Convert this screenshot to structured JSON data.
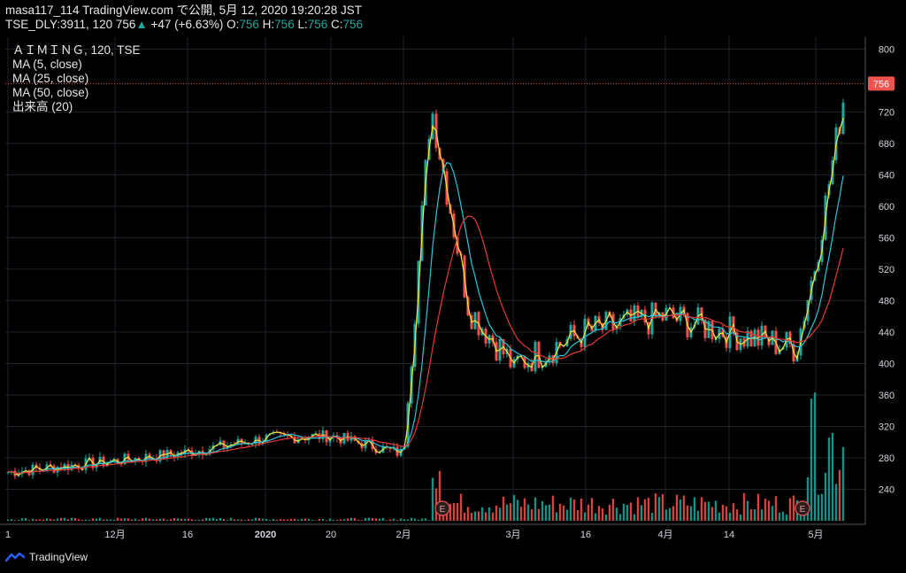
{
  "header": {
    "publish_line": "masa117_114 TradingView.com で公開, 5月 12, 2020 19:20:28 JST",
    "symbol_prefix": "TSE_DLY:3911, 120",
    "last": "756",
    "change": "+47 (+6.63%)",
    "o_label": "O:",
    "o": "756",
    "h_label": "H:",
    "h": "756",
    "l_label": "L:",
    "l": "756",
    "c_label": "C:",
    "c": "756"
  },
  "legend": {
    "symbol": "ＡＩＭＩＮＧ, 120, TSE",
    "ma5": "MA (5, close)",
    "ma25": "MA (25, close)",
    "ma50": "MA (50, close)",
    "volume": "出来高 (20)"
  },
  "brand": "TradingView",
  "colors": {
    "up": "#26a69a",
    "down": "#ef5350",
    "ma5": "#f5e642",
    "ma25": "#26c6da",
    "ma50": "#e53935",
    "price_line": "#ef5350",
    "grid": "#1e222d"
  },
  "chart_data": {
    "type": "candlestick",
    "title": "ＡＩＭＩＮＧ, 120, TSE",
    "y_axis": {
      "ticks": [
        240,
        280,
        320,
        360,
        400,
        440,
        480,
        520,
        560,
        600,
        640,
        680,
        720,
        800
      ],
      "range": [
        200,
        815
      ]
    },
    "x_axis": {
      "ticks": [
        "1",
        "12月",
        "16",
        "2020",
        "20",
        "2月",
        "3月",
        "16",
        "4月",
        "14",
        "5月"
      ]
    },
    "last_price_label": "756",
    "earnings_markers": [
      "E",
      "E"
    ],
    "series_anchor_points": [
      {
        "period": "1 Nov",
        "close": 262
      },
      {
        "period": "12月",
        "close": 276
      },
      {
        "period": "16 Dec",
        "close": 287
      },
      {
        "period": "2020",
        "close": 305
      },
      {
        "period": "20 Jan",
        "close": 308
      },
      {
        "period": "Early Feb",
        "close": 285
      },
      {
        "period": "Feb spike",
        "close": 730
      },
      {
        "period": "Mid Feb",
        "close": 470
      },
      {
        "period": "3月",
        "close": 398
      },
      {
        "period": "16 Mar",
        "close": 440
      },
      {
        "period": "4月",
        "close": 460
      },
      {
        "period": "14 Apr",
        "close": 440
      },
      {
        "period": "Early May",
        "close": 420
      },
      {
        "period": "5月",
        "close": 530
      },
      {
        "period": "May 12",
        "close": 756
      }
    ],
    "moving_averages": [
      "MA (5, close)",
      "MA (25, close)",
      "MA (50, close)"
    ],
    "volume_label": "出来高 (20)"
  }
}
